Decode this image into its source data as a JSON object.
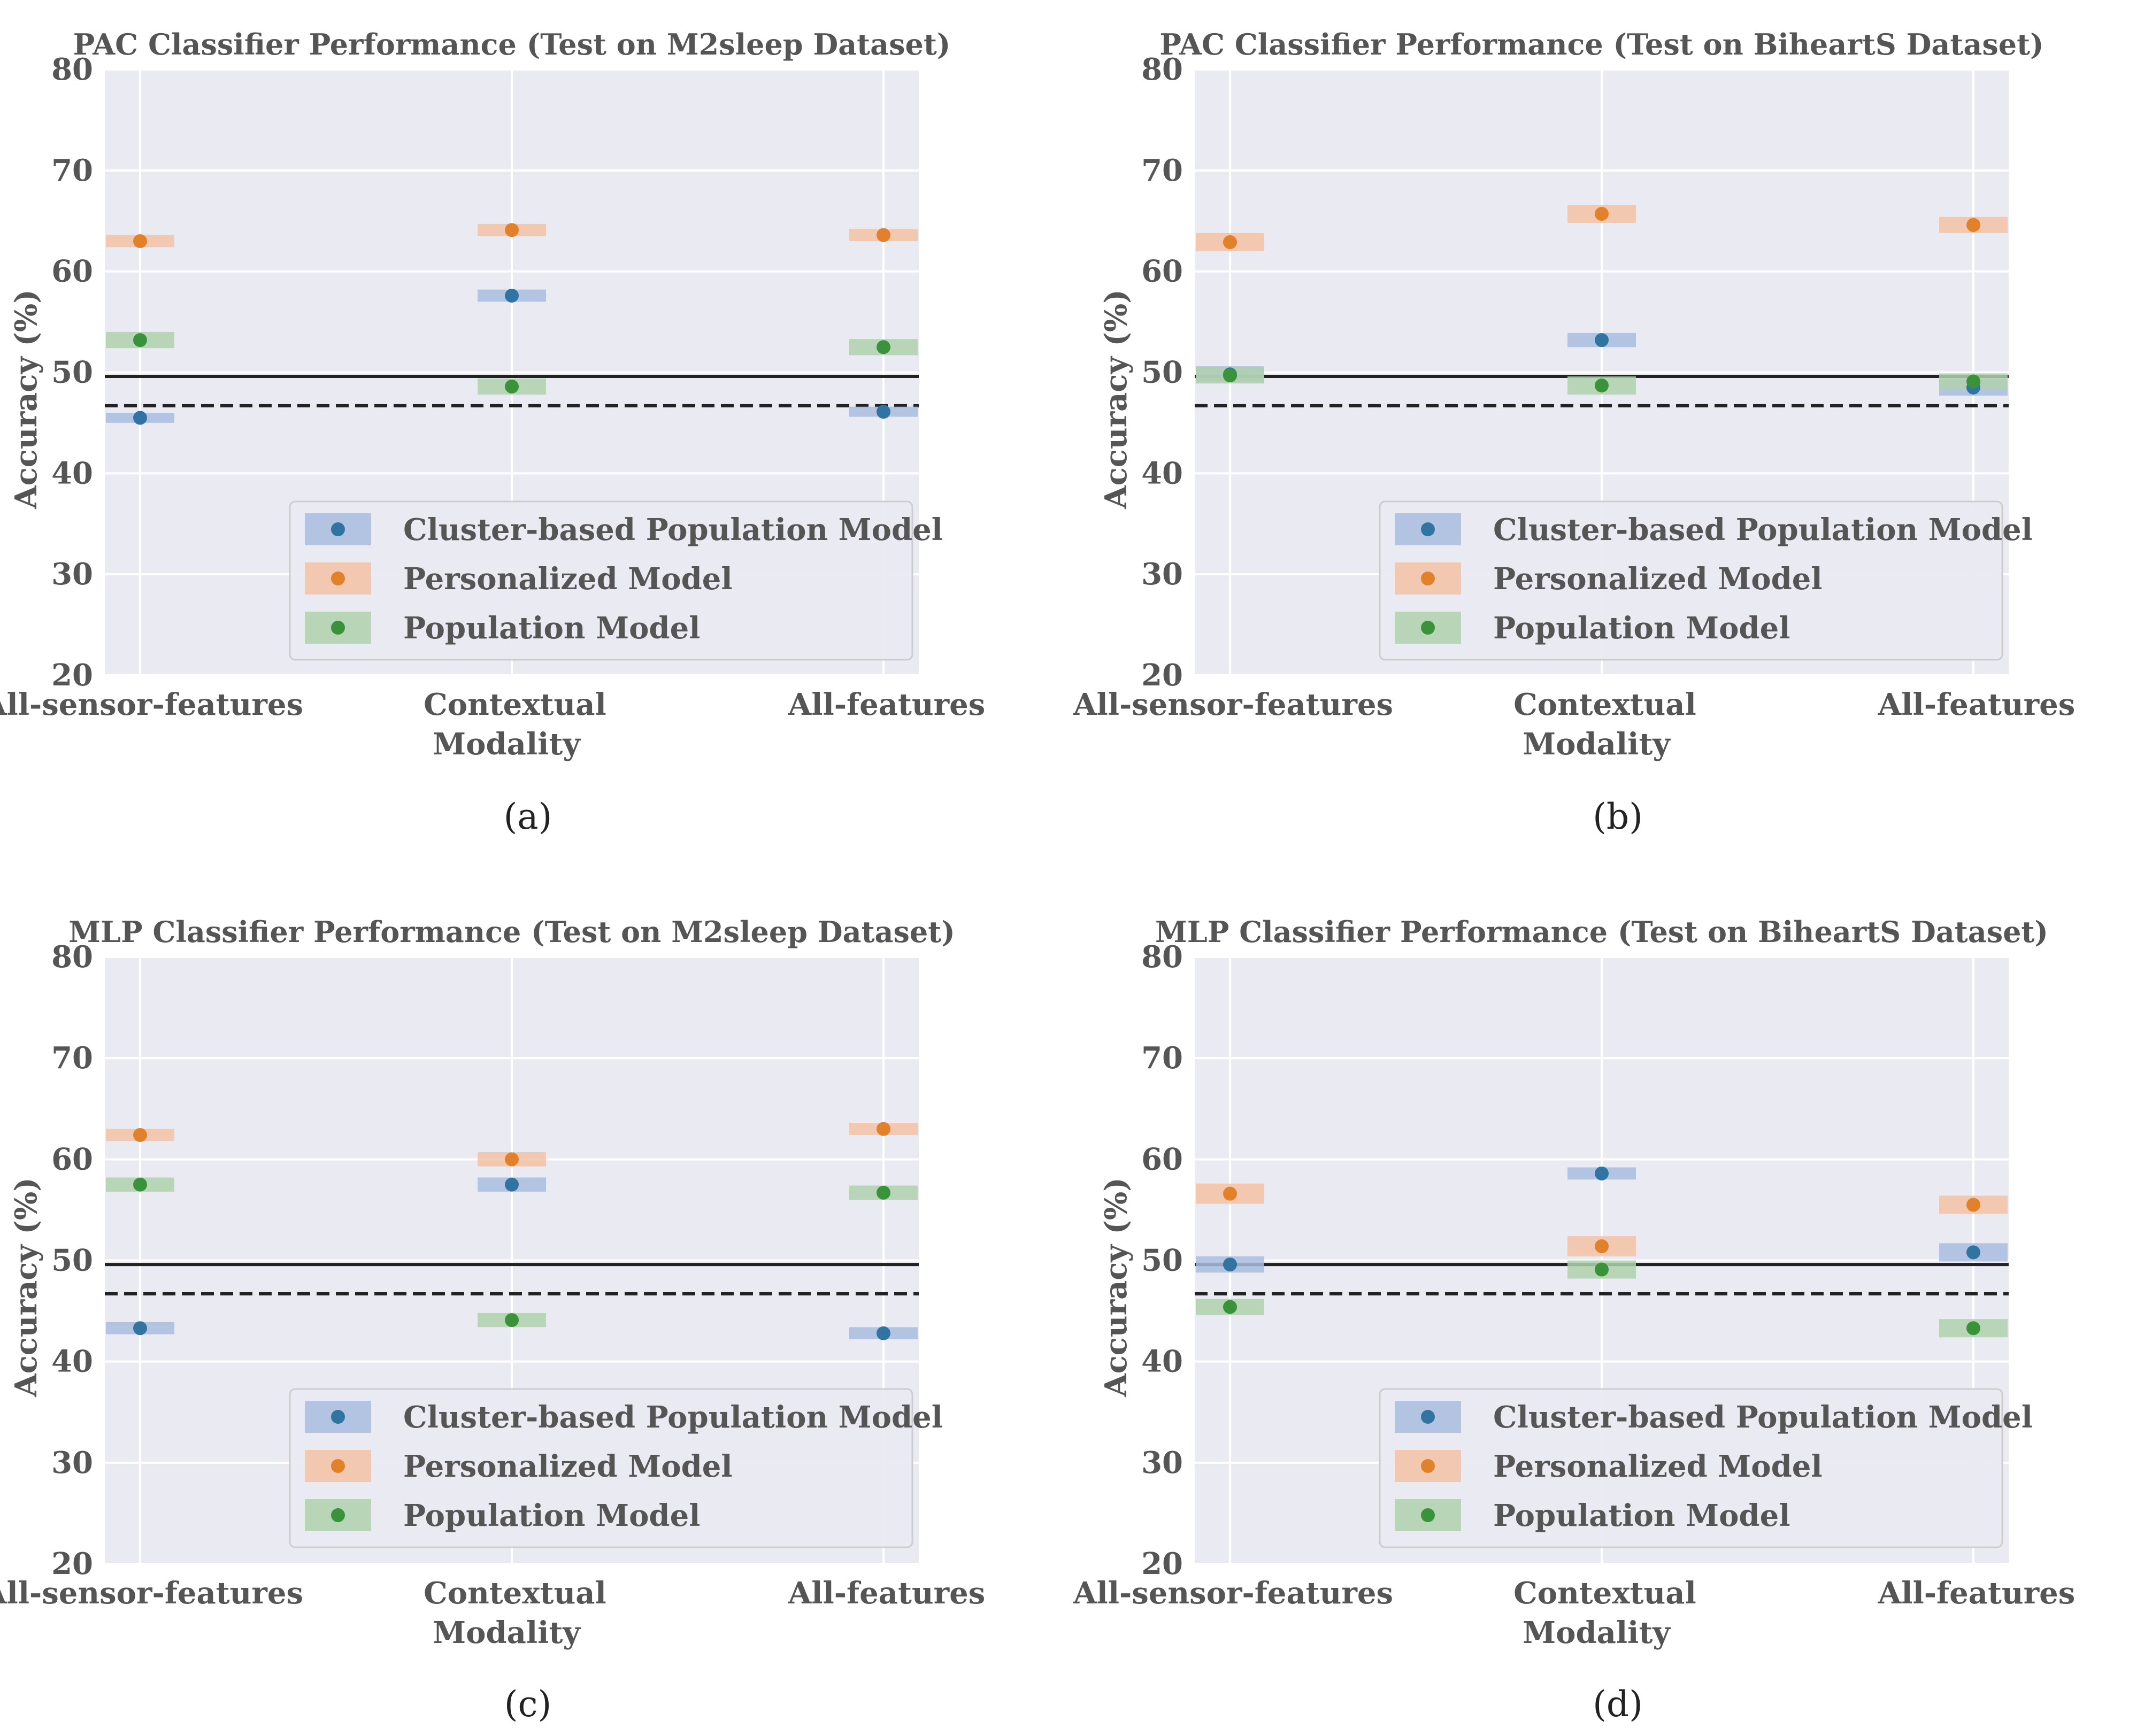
{
  "chart_data": [
    {
      "type": "scatter",
      "title": "PAC Classifier Performance (Test on M2sleep Dataset)",
      "caption": "(a)",
      "xlabel": "Modality",
      "ylabel": "Accuracy (%)",
      "categories": [
        "All-sensor-features",
        "Contextual",
        "All-features"
      ],
      "ylim": [
        20,
        80
      ],
      "yticks": [
        "20",
        "30",
        "40",
        "50",
        "60",
        "70",
        "80"
      ],
      "grid": true,
      "legend_position": "lower-right",
      "ref_lines": {
        "solid": 49.6,
        "dashed": 46.7
      },
      "series": [
        {
          "name": "Cluster-based Population Model",
          "values": [
            45.5,
            57.6,
            46.1
          ],
          "band": [
            [
              45.0,
              46.0
            ],
            [
              57.0,
              58.2
            ],
            [
              45.6,
              46.6
            ]
          ]
        },
        {
          "name": "Personalized Model",
          "values": [
            63.0,
            64.1,
            63.6
          ],
          "band": [
            [
              62.4,
              63.6
            ],
            [
              63.5,
              64.7
            ],
            [
              63.0,
              64.2
            ]
          ]
        },
        {
          "name": "Population Model",
          "values": [
            53.2,
            48.6,
            52.5
          ],
          "band": [
            [
              52.4,
              54.0
            ],
            [
              47.8,
              49.4
            ],
            [
              51.7,
              53.3
            ]
          ]
        }
      ]
    },
    {
      "type": "scatter",
      "title": "PAC Classifier Performance (Test on BiheartS Dataset)",
      "caption": "(b)",
      "xlabel": "Modality",
      "ylabel": "Accuracy (%)",
      "categories": [
        "All-sensor-features",
        "Contextual",
        "All-features"
      ],
      "ylim": [
        20,
        80
      ],
      "yticks": [
        "20",
        "30",
        "40",
        "50",
        "60",
        "70",
        "80"
      ],
      "grid": true,
      "legend_position": "lower-right",
      "ref_lines": {
        "solid": 49.6,
        "dashed": 46.7
      },
      "series": [
        {
          "name": "Cluster-based Population Model",
          "values": [
            49.8,
            53.2,
            48.5
          ],
          "band": [
            [
              49.0,
              50.6
            ],
            [
              52.5,
              53.9
            ],
            [
              47.7,
              49.3
            ]
          ]
        },
        {
          "name": "Personalized Model",
          "values": [
            62.9,
            65.7,
            64.6
          ],
          "band": [
            [
              62.0,
              63.8
            ],
            [
              64.8,
              66.6
            ],
            [
              63.8,
              65.4
            ]
          ]
        },
        {
          "name": "Population Model",
          "values": [
            49.7,
            48.7,
            49.1
          ],
          "band": [
            [
              48.9,
              50.5
            ],
            [
              47.8,
              49.6
            ],
            [
              48.3,
              49.9
            ]
          ]
        }
      ]
    },
    {
      "type": "scatter",
      "title": "MLP Classifier Performance (Test on M2sleep Dataset)",
      "caption": "(c)",
      "xlabel": "Modality",
      "ylabel": "Accuracy (%)",
      "categories": [
        "All-sensor-features",
        "Contextual",
        "All-features"
      ],
      "ylim": [
        20,
        80
      ],
      "yticks": [
        "20",
        "30",
        "40",
        "50",
        "60",
        "70",
        "80"
      ],
      "grid": true,
      "legend_position": "lower-right",
      "ref_lines": {
        "solid": 49.6,
        "dashed": 46.7
      },
      "series": [
        {
          "name": "Cluster-based Population Model",
          "values": [
            43.3,
            57.5,
            42.8
          ],
          "band": [
            [
              42.7,
              43.9
            ],
            [
              56.8,
              58.2
            ],
            [
              42.2,
              43.4
            ]
          ]
        },
        {
          "name": "Personalized Model",
          "values": [
            62.4,
            60.0,
            63.0
          ],
          "band": [
            [
              61.8,
              63.0
            ],
            [
              59.3,
              60.7
            ],
            [
              62.4,
              63.6
            ]
          ]
        },
        {
          "name": "Population Model",
          "values": [
            57.5,
            44.1,
            56.7
          ],
          "band": [
            [
              56.8,
              58.2
            ],
            [
              43.4,
              44.8
            ],
            [
              56.0,
              57.4
            ]
          ]
        }
      ]
    },
    {
      "type": "scatter",
      "title": "MLP Classifier Performance (Test on BiheartS Dataset)",
      "caption": "(d)",
      "xlabel": "Modality",
      "ylabel": "Accuracy (%)",
      "categories": [
        "All-sensor-features",
        "Contextual",
        "All-features"
      ],
      "ylim": [
        20,
        80
      ],
      "yticks": [
        "20",
        "30",
        "40",
        "50",
        "60",
        "70",
        "80"
      ],
      "grid": true,
      "legend_position": "lower-right",
      "ref_lines": {
        "solid": 49.6,
        "dashed": 46.7
      },
      "series": [
        {
          "name": "Cluster-based Population Model",
          "values": [
            49.6,
            58.6,
            50.8
          ],
          "band": [
            [
              48.8,
              50.4
            ],
            [
              58.0,
              59.2
            ],
            [
              49.9,
              51.7
            ]
          ]
        },
        {
          "name": "Personalized Model",
          "values": [
            56.6,
            51.4,
            55.5
          ],
          "band": [
            [
              55.6,
              57.6
            ],
            [
              50.4,
              52.4
            ],
            [
              54.6,
              56.4
            ]
          ]
        },
        {
          "name": "Population Model",
          "values": [
            45.4,
            49.1,
            43.3
          ],
          "band": [
            [
              44.6,
              46.2
            ],
            [
              48.2,
              50.0
            ],
            [
              42.4,
              44.2
            ]
          ]
        }
      ]
    }
  ],
  "colors": {
    "series_points": [
      "#3274a1",
      "#e1812c",
      "#3a923a"
    ],
    "series_bands": [
      "#a9bde0",
      "#f3c2a6",
      "#afd1ae"
    ],
    "axes_background": "#eaeaf2",
    "grid": "#ffffff",
    "ref_line": "#222222"
  }
}
